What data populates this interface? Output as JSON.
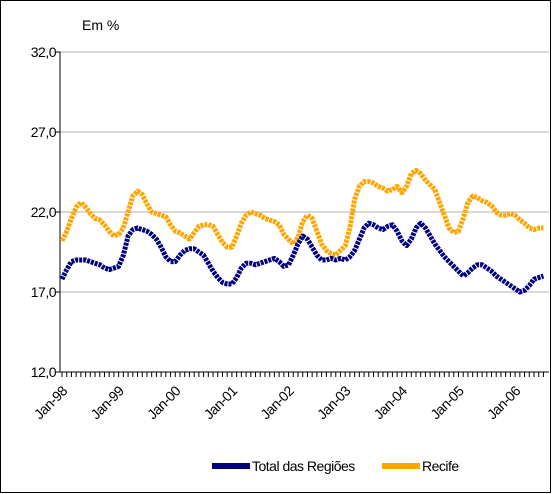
{
  "chart_data": {
    "type": "line",
    "annotation": "Em %",
    "categories": [
      "Jan-98",
      null,
      null,
      null,
      null,
      null,
      null,
      null,
      null,
      null,
      null,
      null,
      "Jan-99",
      null,
      null,
      null,
      null,
      null,
      null,
      null,
      null,
      null,
      null,
      null,
      "Jan-00",
      null,
      null,
      null,
      null,
      null,
      null,
      null,
      null,
      null,
      null,
      null,
      "Jan-01",
      null,
      null,
      null,
      null,
      null,
      null,
      null,
      null,
      null,
      null,
      null,
      "Jan-02",
      null,
      null,
      null,
      null,
      null,
      null,
      null,
      null,
      null,
      null,
      null,
      "Jan-03",
      null,
      null,
      null,
      null,
      null,
      null,
      null,
      null,
      null,
      null,
      null,
      "Jan-04",
      null,
      null,
      null,
      null,
      null,
      null,
      null,
      null,
      null,
      null,
      null,
      "Jan-05",
      null,
      null,
      null,
      null,
      null,
      null,
      null,
      null,
      null,
      null,
      null,
      "Jan-06",
      null,
      null,
      null,
      null,
      null,
      null
    ],
    "series": [
      {
        "name": "Total das Regiões",
        "color": "#000080",
        "values": [
          17.8,
          18.4,
          18.9,
          19.0,
          19.0,
          19.0,
          18.9,
          18.8,
          18.7,
          18.5,
          18.4,
          18.5,
          18.6,
          19.3,
          20.5,
          20.9,
          21.0,
          20.9,
          20.8,
          20.6,
          20.3,
          19.8,
          19.2,
          18.9,
          18.9,
          19.3,
          19.6,
          19.7,
          19.7,
          19.5,
          19.3,
          18.8,
          18.3,
          17.9,
          17.6,
          17.5,
          17.5,
          17.9,
          18.5,
          18.8,
          18.8,
          18.7,
          18.8,
          18.9,
          19.0,
          19.1,
          18.9,
          18.6,
          18.7,
          19.3,
          20.0,
          20.5,
          20.3,
          19.8,
          19.3,
          19.0,
          19.0,
          19.1,
          19.0,
          19.1,
          19.0,
          19.2,
          19.6,
          20.3,
          21.0,
          21.3,
          21.2,
          21.0,
          20.9,
          21.1,
          21.2,
          20.8,
          20.2,
          19.9,
          20.3,
          21.0,
          21.3,
          21.0,
          20.5,
          20.0,
          19.6,
          19.2,
          18.9,
          18.6,
          18.3,
          18.0,
          18.2,
          18.5,
          18.7,
          18.7,
          18.5,
          18.3,
          18.0,
          17.8,
          17.6,
          17.4,
          17.2,
          17.0,
          17.1,
          17.4,
          17.8,
          17.9,
          18.0
        ]
      },
      {
        "name": "Recife",
        "color": "#ffa500",
        "values": [
          20.2,
          20.8,
          21.6,
          22.3,
          22.6,
          22.3,
          21.9,
          21.6,
          21.5,
          21.2,
          20.8,
          20.5,
          20.6,
          21.0,
          22.0,
          23.0,
          23.3,
          23.1,
          22.5,
          22.0,
          21.9,
          21.8,
          21.7,
          21.2,
          20.8,
          20.7,
          20.5,
          20.3,
          20.7,
          21.1,
          21.2,
          21.2,
          21.1,
          20.6,
          20.1,
          19.8,
          19.8,
          20.5,
          21.3,
          21.8,
          22.0,
          21.9,
          21.8,
          21.6,
          21.5,
          21.4,
          21.2,
          20.6,
          20.3,
          20.0,
          20.4,
          21.4,
          21.8,
          21.6,
          20.8,
          20.0,
          19.6,
          19.4,
          19.3,
          19.6,
          19.9,
          21.0,
          22.8,
          23.6,
          23.9,
          23.9,
          23.8,
          23.6,
          23.5,
          23.3,
          23.4,
          23.6,
          23.2,
          23.6,
          24.4,
          24.6,
          24.4,
          24.0,
          23.7,
          23.4,
          22.6,
          21.8,
          21.0,
          20.7,
          20.8,
          21.6,
          22.6,
          23.0,
          22.9,
          22.7,
          22.6,
          22.4,
          22.0,
          21.8,
          21.8,
          21.9,
          21.8,
          21.5,
          21.3,
          21.0,
          20.9,
          21.0,
          21.0
        ]
      }
    ],
    "ylim": [
      12,
      32
    ],
    "yticks": [
      {
        "value": 12,
        "label": "12,0"
      },
      {
        "value": 17,
        "label": "17,0"
      },
      {
        "value": 22,
        "label": "22,0"
      },
      {
        "value": 27,
        "label": "27,0"
      },
      {
        "value": 32,
        "label": "32,0"
      }
    ],
    "grid": true,
    "legend": "bottom"
  }
}
